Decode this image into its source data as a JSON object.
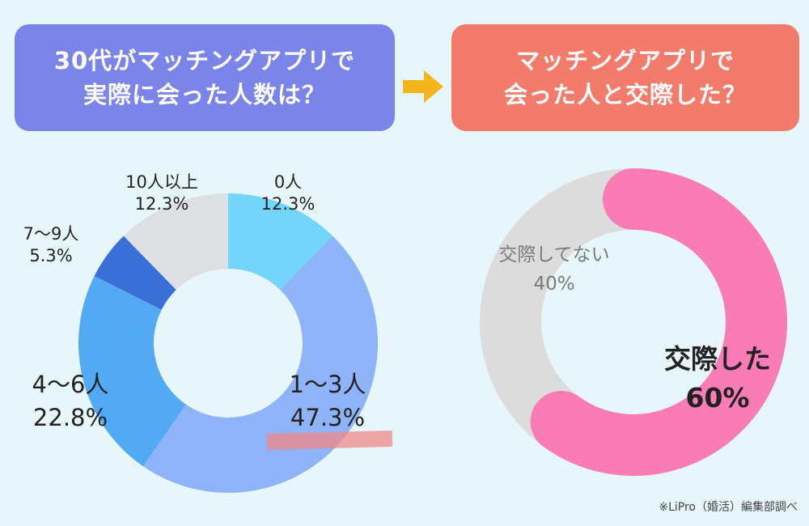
{
  "header": {
    "left_title_line1": "30代がマッチングアプリで",
    "left_title_line2": "実際に会った人数は？",
    "right_title_line1": "マッチングアプリで",
    "right_title_line2": "会った人と交際した？",
    "arrow_icon": "right-arrow-icon",
    "left_color": "#7b84e8",
    "right_color": "#f27b6b",
    "arrow_color": "#f5b61d"
  },
  "source_note": "※LiPro（婚活）編集部調べ",
  "chart_data": [
    {
      "type": "pie",
      "title": "30代がマッチングアプリで実際に会った人数は？",
      "donut": true,
      "slices": [
        {
          "label": "0人",
          "value": 12.3,
          "display": "12.3%",
          "color": "#74d5fb"
        },
        {
          "label": "1〜3人",
          "value": 47.3,
          "display": "47.3%",
          "color": "#8fb3f8"
        },
        {
          "label": "4〜6人",
          "value": 22.8,
          "display": "22.8%",
          "color": "#52aaf5"
        },
        {
          "label": "7〜9人",
          "value": 5.3,
          "display": "5.3%",
          "color": "#3a6fd8"
        },
        {
          "label": "10人以上",
          "value": 12.3,
          "display": "12.3%",
          "color": "#dedfe2"
        }
      ]
    },
    {
      "type": "pie",
      "title": "マッチングアプリで会った人と交際した？",
      "donut": true,
      "slices": [
        {
          "label": "交際した",
          "value": 60,
          "display": "60%",
          "color": "#f97cb6"
        },
        {
          "label": "交際してない",
          "value": 40,
          "display": "40%",
          "color": "#dcdcdc"
        }
      ]
    }
  ]
}
